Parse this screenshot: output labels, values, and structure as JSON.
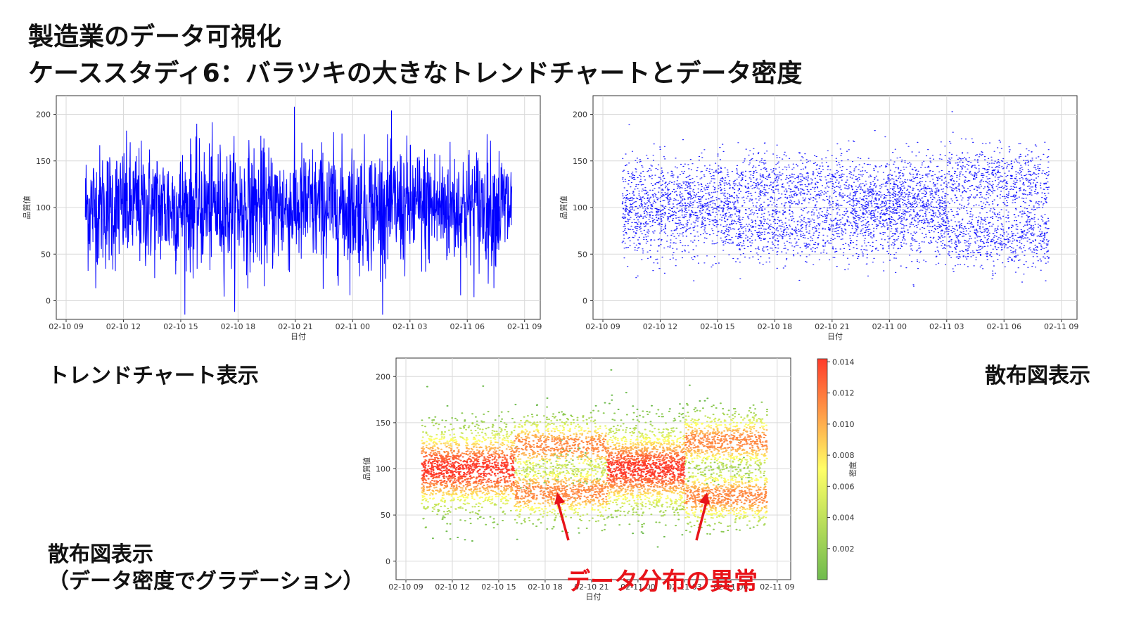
{
  "title": {
    "line1": "製造業のデータ可視化",
    "line2": "ケーススタディ6：バラツキの大きなトレンドチャートとデータ密度"
  },
  "labels": {
    "trend": "トレンドチャート表示",
    "scatter": "散布図表示",
    "density_line1": "散布図表示",
    "density_line2": "（データ密度でグラデーション）",
    "anomaly": "データ分布の異常"
  },
  "colors": {
    "trend_line": "#0000ff",
    "scatter_points": "#1a1aff",
    "anomaly_text": "#e8141a",
    "colormap": [
      "#6fbb4e",
      "#ffff66",
      "#ff3b2a"
    ]
  },
  "chart_data": [
    {
      "type": "line",
      "xlabel": "日付",
      "ylabel": "品質値",
      "x_ticks": [
        "02-10 09",
        "02-10 12",
        "02-10 15",
        "02-10 18",
        "02-10 21",
        "02-11 00",
        "02-11 03",
        "02-11 06",
        "02-11 09"
      ],
      "x_range": [
        "02-10 10",
        "02-11 08:20"
      ],
      "y_ticks": [
        0,
        50,
        100,
        150,
        200
      ],
      "ylim": [
        -20,
        220
      ],
      "series_mean": 100,
      "typical_range": [
        30,
        175
      ],
      "extreme_range": [
        -15,
        212
      ],
      "grid": true
    },
    {
      "type": "scatter",
      "xlabel": "日付",
      "ylabel": "品質値",
      "x_ticks": [
        "02-10 09",
        "02-10 12",
        "02-10 15",
        "02-10 18",
        "02-10 21",
        "02-11 00",
        "02-11 03",
        "02-11 06",
        "02-11 09"
      ],
      "y_ticks": [
        0,
        50,
        100,
        150,
        200
      ],
      "ylim": [
        -20,
        220
      ],
      "segments": [
        {
          "from": "02-10 10",
          "to": "02-10 16",
          "centers": [
            100
          ],
          "spread": 25
        },
        {
          "from": "02-10 16",
          "to": "02-10 22",
          "centers": [
            75,
            125
          ],
          "spread": 17
        },
        {
          "from": "02-10 22",
          "to": "02-11 03",
          "centers": [
            100
          ],
          "spread": 25
        },
        {
          "from": "02-11 03",
          "to": "02-11 08:20",
          "centers": [
            70,
            130
          ],
          "spread": 17
        }
      ],
      "grid": true
    },
    {
      "type": "scatter",
      "xlabel": "日付",
      "ylabel": "品質値",
      "colorbar_label": "密度",
      "colorbar_ticks": [
        0.002,
        0.004,
        0.006,
        0.008,
        0.01,
        0.012,
        0.014
      ],
      "colorbar_tick_labels": [
        "0.002",
        "0.004",
        "0.006",
        "0.008",
        "0.010",
        "0.012",
        "0.014"
      ],
      "x_ticks": [
        "02-10 09",
        "02-10 12",
        "02-10 15",
        "02-10 18",
        "02-10 21",
        "02-11 00",
        "02-11 03",
        "02-11 06",
        "02-11 09"
      ],
      "y_ticks": [
        0,
        50,
        100,
        150,
        200
      ],
      "ylim": [
        -20,
        220
      ],
      "annotation": "データ分布の異常",
      "annotation_targets": [
        "02-10 18",
        "02-11 04"
      ],
      "grid": true
    }
  ]
}
